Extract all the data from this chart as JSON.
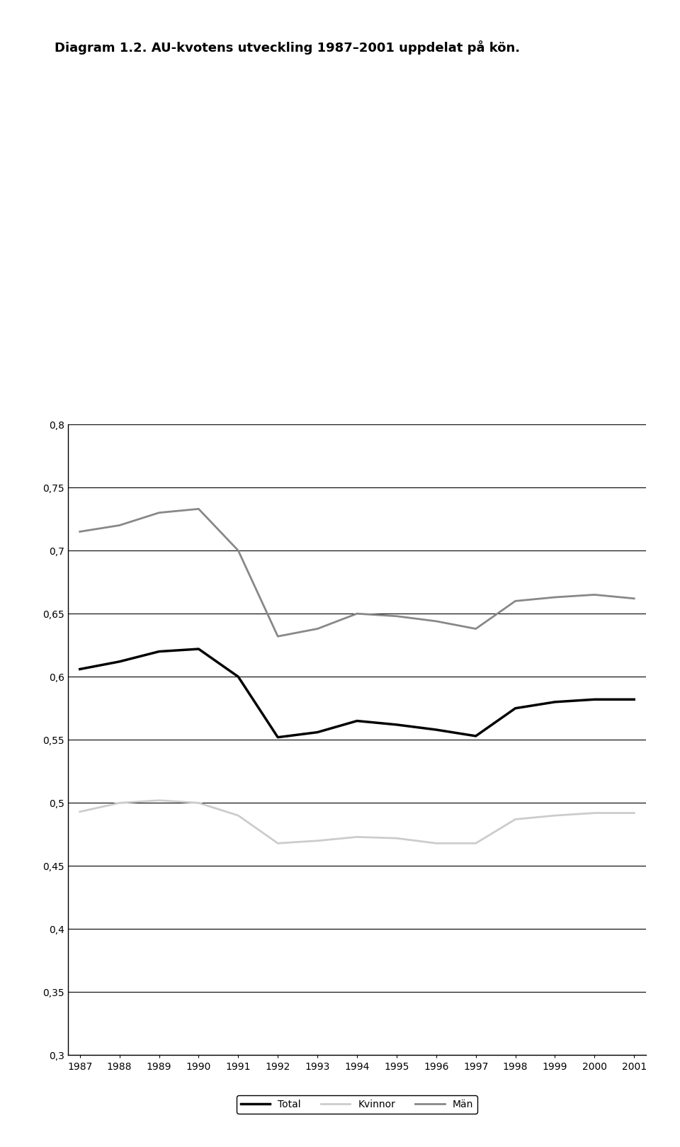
{
  "years": [
    1987,
    1988,
    1989,
    1990,
    1991,
    1992,
    1993,
    1994,
    1995,
    1996,
    1997,
    1998,
    1999,
    2000,
    2001
  ],
  "total": [
    0.606,
    0.612,
    0.62,
    0.622,
    0.6,
    0.552,
    0.556,
    0.565,
    0.562,
    0.558,
    0.553,
    0.575,
    0.58,
    0.582,
    0.582
  ],
  "kvinnor": [
    0.493,
    0.5,
    0.502,
    0.5,
    0.49,
    0.468,
    0.47,
    0.473,
    0.472,
    0.468,
    0.468,
    0.487,
    0.49,
    0.492,
    0.492
  ],
  "man": [
    0.715,
    0.72,
    0.73,
    0.733,
    0.7,
    0.632,
    0.638,
    0.65,
    0.648,
    0.644,
    0.638,
    0.66,
    0.663,
    0.665,
    0.662
  ],
  "total_color": "#000000",
  "kvinnor_color": "#cccccc",
  "man_color": "#888888",
  "total_lw": 2.5,
  "kvinnor_lw": 2.0,
  "man_lw": 2.0,
  "ylim": [
    0.3,
    0.8
  ],
  "yticks": [
    0.3,
    0.35,
    0.4,
    0.45,
    0.5,
    0.55,
    0.6,
    0.65,
    0.7,
    0.75,
    0.8
  ],
  "title": "Diagram 1.2. AU-kvotens utveckling 1987–2001 uppdelat på kön.",
  "legend_labels": [
    "Total",
    "Kvinnor",
    "Män"
  ],
  "background_color": "#ffffff",
  "grid_color": "#000000",
  "title_fontsize": 13,
  "tick_fontsize": 10,
  "legend_fontsize": 10
}
